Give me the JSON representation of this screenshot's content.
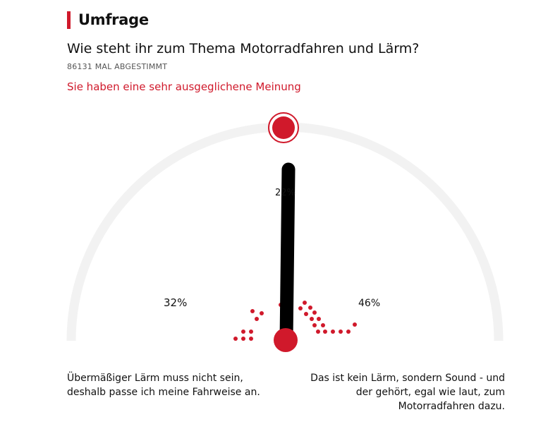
{
  "header": {
    "title": "Umfrage"
  },
  "poll": {
    "question": "Wie steht ihr zum Thema Motorradfahren und Lärm?",
    "vote_count": "86131 MAL ABGESTIMMT",
    "result_text": "Sie haben eine sehr ausgeglichene Meinung",
    "percent_left": "32%",
    "percent_middle": "22%",
    "percent_right": "46%",
    "answer_left": "Übermäßiger Lärm muss nicht sein, deshalb passe ich meine Fahrweise an.",
    "answer_right": "Das ist kein Lärm, sondern Sound - und der gehört, egal wie laut, zum Motorradfahren dazu."
  },
  "colors": {
    "accent": "#d0192b",
    "needle": "#000000",
    "track": "#f2f2f2"
  }
}
